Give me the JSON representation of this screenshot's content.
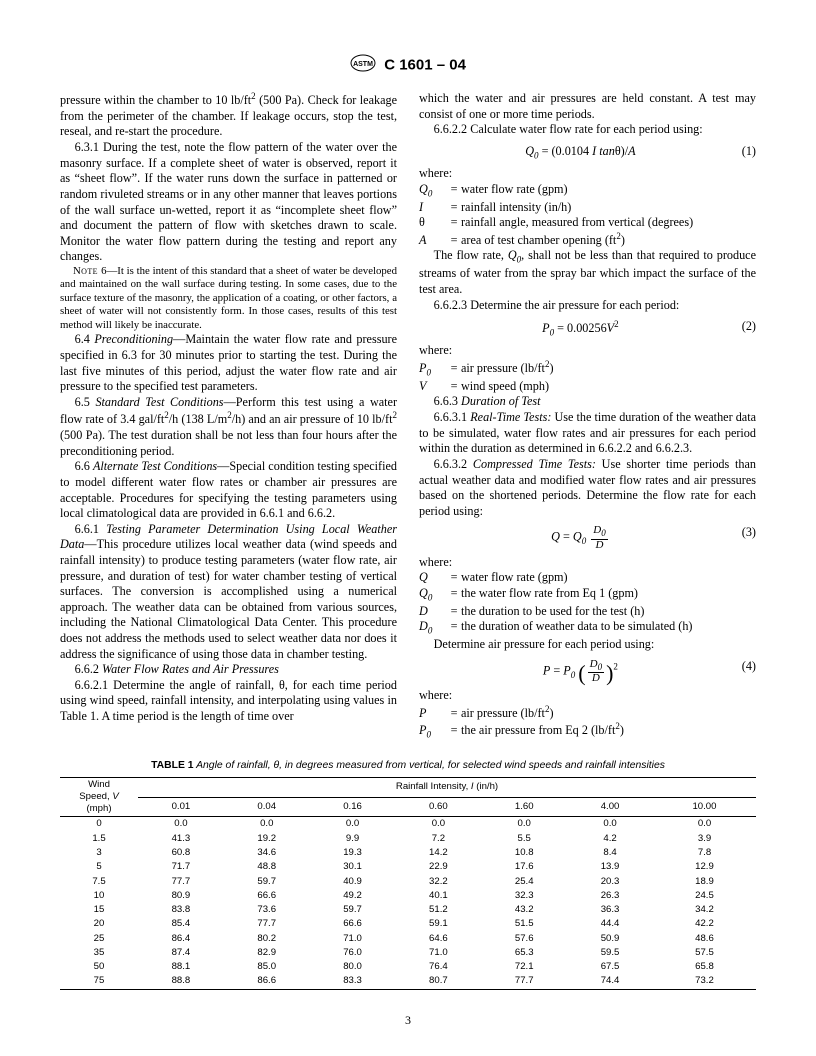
{
  "header": {
    "designation": "C 1601 – 04"
  },
  "col1": {
    "p_lead": "pressure within the chamber to 10 lb/ft",
    "p_lead_tail": " (500 Pa). Check for leakage from the perimeter of the chamber. If leakage occurs, stop the test, reseal, and re-start the procedure.",
    "p631": "6.3.1 During the test, note the flow pattern of the water over the masonry surface. If a complete sheet of water is observed, report it as “sheet flow”. If the water runs down the surface in patterned or random rivuleted streams or in any other manner that leaves portions of the wall surface un-wetted, report it as “incomplete sheet flow” and document the pattern of flow with sketches drawn to scale. Monitor the water flow pattern during the testing and report any changes.",
    "note6": "6—It is the intent of this standard that a sheet of water be developed and maintained on the wall surface during testing. In some cases, due to the surface texture of the masonry, the application of a coating, or other factors, a sheet of water will not consistently form. In those cases, results of this test method will likely be inaccurate.",
    "p64_label": "Preconditioning",
    "p64": "—Maintain the water flow rate and pressure specified in 6.3 for 30 minutes prior to starting the test. During the last five minutes of this period, adjust the water flow rate and air pressure to the specified test parameters.",
    "p65_label": "Standard Test Conditions",
    "p65": "—Perform this test using a water flow rate of 3.4 gal/ft",
    "p65_mid": "/h (138 L/m",
    "p65_tail": "/h) and an air pressure of 10 lb/ft",
    "p65_end": " (500 Pa). The test duration shall be not less than four hours after the preconditioning period.",
    "p66_label": "Alternate Test Conditions",
    "p66": "—Special condition testing specified to model different water flow rates or chamber air pressures are acceptable. Procedures for specifying the testing parameters using local climatological data are provided in 6.6.1 and 6.6.2.",
    "p661_label": "Testing Parameter Determination Using Local Weather Data",
    "p661": "—This procedure utilizes local weather data (wind speeds and rainfall intensity) to produce testing parameters (water flow rate, air pressure, and duration of test) for water chamber testing of vertical surfaces. The conversion is accomplished using a numerical approach. The weather data can be obtained from various sources, including the National Climatological Data Center. This procedure does not address the methods used to select weather data nor does it address the significance of using those data in chamber testing.",
    "p662_label": "Water Flow Rates and Air Pressures",
    "p6621": "6.6.2.1 Determine the angle of rainfall, θ, for each time period using wind speed, rainfall intensity, and interpolating using values in Table 1. A time period is the length of time over"
  },
  "col2": {
    "p_cont": "which the water and air pressures are held constant. A test may consist of one or more time periods.",
    "p6622": "6.6.2.2 Calculate water flow rate for each period using:",
    "eq1": "Q",
    "eq1b": " = (0.0104 ",
    "eq1c": "I tan",
    "eq1d": "θ)/",
    "eq1e": "A",
    "eq1n": "(1)",
    "w1": {
      "Q0": "water flow rate (gpm)",
      "I": "rainfall intensity (in/h)",
      "theta": "rainfall angle, measured from vertical (degrees)",
      "A": "area of test chamber opening (ft"
    },
    "flowrate_note_a": "The flow rate, ",
    "flowrate_note_b": ", shall not be less than that required to produce streams of water from the spray bar which impact the surface of the test area.",
    "p6623": "6.6.2.3 Determine the air pressure for each period:",
    "eq2a": "P",
    "eq2b": " = 0.00256",
    "eq2c": "V",
    "eq2n": "(2)",
    "w2": {
      "P0": "air pressure (lb/ft",
      "V": "wind speed (mph)"
    },
    "p663_label": "Duration of Test",
    "p6631a": "Real-Time Tests:",
    "p6631b": " Use the time duration of the weather data to be simulated, water flow rates and air pressures for each period within the duration as determined in 6.6.2.2 and 6.6.2.3.",
    "p6632a": "Compressed Time Tests:",
    "p6632b": " Use shorter time periods than actual weather data and modified water flow rates and air pressures based on the shortened periods. Determine the flow rate for each period using:",
    "eq3n": "(3)",
    "w3": {
      "Q": "water flow rate (gpm)",
      "Q0": "the water flow rate from Eq 1 (gpm)",
      "D": "the duration to be used for the test (h)",
      "D0": "the duration of weather data to be simulated (h)"
    },
    "det_air": "Determine air pressure for each period using:",
    "eq4n": "(4)",
    "w4": {
      "P": "air pressure (lb/ft",
      "P0": "the air pressure from Eq 2 (lb/ft"
    }
  },
  "table": {
    "caption_b": "TABLE 1",
    "caption_i": " Angle of rainfall, θ, in degrees measured from vertical, for selected wind speeds and rainfall intensities",
    "wshead1": "Wind",
    "wshead2": "Speed, ",
    "wshead3": "(mph)",
    "rihead": "Rainfall Intensity, ",
    "riunit": " (in/h)",
    "cols": [
      "0.01",
      "0.04",
      "0.16",
      "0.60",
      "1.60",
      "4.00",
      "10.00"
    ],
    "rows": [
      [
        "0",
        "0.0",
        "0.0",
        "0.0",
        "0.0",
        "0.0",
        "0.0",
        "0.0"
      ],
      [
        "1.5",
        "41.3",
        "19.2",
        "9.9",
        "7.2",
        "5.5",
        "4.2",
        "3.9"
      ],
      [
        "3",
        "60.8",
        "34.6",
        "19.3",
        "14.2",
        "10.8",
        "8.4",
        "7.8"
      ],
      [
        "5",
        "71.7",
        "48.8",
        "30.1",
        "22.9",
        "17.6",
        "13.9",
        "12.9"
      ],
      [
        "7.5",
        "77.7",
        "59.7",
        "40.9",
        "32.2",
        "25.4",
        "20.3",
        "18.9"
      ],
      [
        "10",
        "80.9",
        "66.6",
        "49.2",
        "40.1",
        "32.3",
        "26.3",
        "24.5"
      ],
      [
        "15",
        "83.8",
        "73.6",
        "59.7",
        "51.2",
        "43.2",
        "36.3",
        "34.2"
      ],
      [
        "20",
        "85.4",
        "77.7",
        "66.6",
        "59.1",
        "51.5",
        "44.4",
        "42.2"
      ],
      [
        "25",
        "86.4",
        "80.2",
        "71.0",
        "64.6",
        "57.6",
        "50.9",
        "48.6"
      ],
      [
        "35",
        "87.4",
        "82.9",
        "76.0",
        "71.0",
        "65.3",
        "59.5",
        "57.5"
      ],
      [
        "50",
        "88.1",
        "85.0",
        "80.0",
        "76.4",
        "72.1",
        "67.5",
        "65.8"
      ],
      [
        "75",
        "88.8",
        "86.6",
        "83.3",
        "80.7",
        "77.7",
        "74.4",
        "73.2"
      ]
    ]
  },
  "pagenum": "3"
}
